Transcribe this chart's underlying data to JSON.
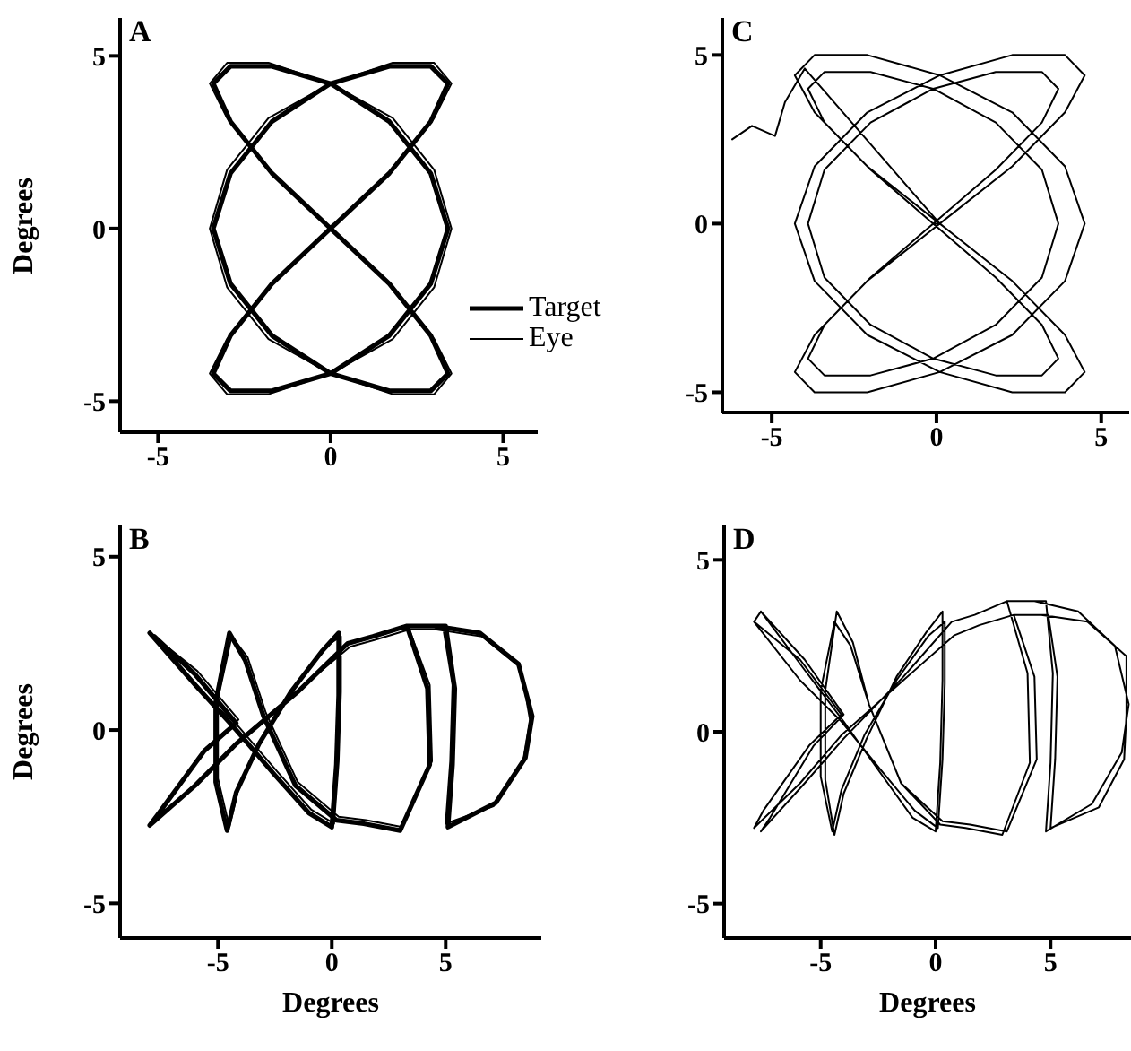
{
  "chart_data": [
    {
      "type": "line",
      "title": "A",
      "ylabel": "Degrees",
      "xlim": [
        -6.1,
        6.0
      ],
      "ylim": [
        -5.9,
        6.1
      ],
      "xticks": [
        -5,
        0,
        5
      ],
      "yticks": [
        -5,
        0,
        5
      ],
      "legend": "right",
      "line_style": "solid",
      "series": [
        {
          "name": "Target",
          "color": "#000000",
          "x": [
            0,
            1.7,
            2.9,
            3.4,
            2.9,
            1.7,
            0,
            -1.7,
            -2.9,
            -3.4,
            -2.9,
            -1.7,
            0,
            1.7,
            2.9,
            3.4,
            2.9,
            1.7,
            0,
            -1.7,
            -2.9,
            -3.4,
            -2.9,
            -1.7,
            0,
            1.7,
            2.9,
            3.4,
            2.9,
            1.7,
            0,
            -1.7,
            -2.9,
            -3.4,
            -2.9,
            -1.7,
            0.1
          ],
          "values": [
            0,
            1.6,
            3.1,
            4.2,
            4.7,
            4.7,
            4.2,
            3.1,
            1.6,
            0,
            -1.6,
            -3.1,
            -4.2,
            -4.7,
            -4.7,
            -4.2,
            -3.1,
            -1.6,
            0,
            1.6,
            3.1,
            4.2,
            4.7,
            4.7,
            4.2,
            3.1,
            1.6,
            0,
            -1.6,
            -3.1,
            -4.2,
            -4.7,
            -4.7,
            -4.2,
            -3.1,
            -1.6,
            0.1
          ]
        },
        {
          "name": "Eye",
          "color": "#000000",
          "x": [
            0.1,
            1.8,
            3.0,
            3.5,
            3.0,
            1.8,
            0,
            -1.8,
            -3.0,
            -3.5,
            -3.0,
            -1.8,
            0,
            1.8,
            3.0,
            3.5,
            3.0,
            1.8,
            0,
            -1.8,
            -3.0,
            -3.5,
            -3.0,
            -1.8,
            0,
            1.8,
            3.0,
            3.5,
            3.0,
            1.8,
            0,
            -1.8,
            -3.0,
            -3.5,
            -3.0,
            -1.8,
            0
          ],
          "values": [
            0.1,
            1.7,
            3.2,
            4.2,
            4.8,
            4.8,
            4.2,
            3.2,
            1.7,
            0,
            -1.7,
            -3.2,
            -4.2,
            -4.8,
            -4.8,
            -4.2,
            -3.2,
            -1.7,
            0,
            1.7,
            3.2,
            4.2,
            4.8,
            4.8,
            4.2,
            3.2,
            1.7,
            0,
            -1.7,
            -3.2,
            -4.2,
            -4.8,
            -4.8,
            -4.2,
            -3.2,
            -1.7,
            0
          ]
        }
      ]
    },
    {
      "type": "line",
      "title": "C",
      "xlim": [
        -6.5,
        5.85
      ],
      "ylim": [
        -5.6,
        6.1
      ],
      "xticks": [
        -5,
        0,
        5
      ],
      "yticks": [
        -5,
        0,
        5
      ],
      "line_style": "solid",
      "series": [
        {
          "color": "#000000",
          "x": [
            -6.2,
            -5.6,
            -4.9,
            -4.6,
            -4.0,
            0.1,
            2.3,
            3.9,
            4.5,
            3.9,
            2.3,
            0.1,
            -2.1,
            -3.7,
            -4.3,
            -3.7,
            -2.1,
            0.1,
            2.3,
            3.9,
            4.5,
            3.9,
            2.3,
            0.1,
            -2.1,
            -3.7,
            -4.3,
            -3.7,
            -2.1,
            0.1,
            2.3,
            3.9,
            4.5,
            3.9,
            2.3,
            0.1,
            -2.1,
            -3.7,
            -4.3,
            -3.7,
            -2.1,
            0.1,
            -0.1,
            1.8,
            3.2,
            3.7,
            3.2,
            1.8,
            -0.1,
            -2.0,
            -3.4,
            -3.9,
            -3.4,
            -2.0,
            -0.1,
            1.8,
            3.2,
            3.7,
            3.2,
            1.8,
            -0.1,
            -2.0,
            -3.4,
            -3.9,
            -3.4,
            -2.0,
            -0.1,
            1.8,
            3.2,
            3.7,
            3.2,
            1.8,
            -0.1,
            -2.0,
            -3.4,
            -3.9,
            -3.4,
            -2.0,
            -0.1
          ],
          "values": [
            2.5,
            2.9,
            2.6,
            3.6,
            4.6,
            0,
            1.7,
            3.3,
            4.4,
            5.0,
            5.0,
            4.4,
            3.3,
            1.7,
            0,
            -1.7,
            -3.3,
            -4.4,
            -5.0,
            -5.0,
            -4.4,
            -3.3,
            -1.7,
            0,
            1.7,
            3.3,
            4.4,
            5.0,
            5.0,
            4.4,
            3.3,
            1.7,
            0,
            -1.7,
            -3.3,
            -4.4,
            -5.0,
            -5.0,
            -4.4,
            -3.3,
            -1.7,
            0,
            0,
            1.6,
            3.0,
            4.0,
            4.5,
            4.5,
            4.0,
            3.0,
            1.6,
            0,
            -1.6,
            -3.0,
            -4.0,
            -4.5,
            -4.5,
            -4.0,
            -3.0,
            -1.6,
            0,
            1.6,
            3.0,
            4.0,
            4.5,
            4.5,
            4.0,
            3.0,
            1.6,
            0,
            -1.6,
            -3.0,
            -4.0,
            -4.5,
            -4.5,
            -4.0,
            -3.0,
            -1.6,
            0
          ]
        }
      ]
    },
    {
      "type": "line",
      "title": "B",
      "xlabel": "Degrees",
      "ylabel": "Degrees",
      "xlim": [
        -9.3,
        9.2
      ],
      "ylim": [
        -6.0,
        5.9
      ],
      "xticks": [
        -5,
        0,
        5
      ],
      "yticks": [
        -5,
        0,
        5
      ],
      "line_style": "solid",
      "series": [
        {
          "color": "#000000",
          "x": [
            -8.0,
            -6.0,
            -4.2,
            -2.5,
            -1.0,
            0.0,
            0.2,
            0.3,
            0.3,
            -0.4,
            -1.8,
            -3.2,
            -4.2,
            -4.6,
            -5.1,
            -5.1,
            -4.5,
            -3.8,
            -3.0,
            -1.6,
            0.2,
            1.4,
            3.0,
            4.3,
            4.2,
            3.3,
            4.5,
            6.5,
            8.2,
            8.8,
            8.5,
            7.2,
            5.1,
            5.3,
            5.4,
            5.0,
            3.3,
            1.8,
            0.7,
            -1.5,
            -4.2,
            -6.0,
            -8.0,
            -7.6,
            -5.6,
            -4.2,
            -6.0,
            -7.8
          ],
          "values": [
            2.8,
            1.3,
            0.0,
            -1.3,
            -2.4,
            -2.8,
            -1.0,
            1.0,
            2.8,
            2.3,
            1.1,
            -0.4,
            -1.8,
            -2.9,
            -1.5,
            0.8,
            2.8,
            2.0,
            0.4,
            -1.6,
            -2.6,
            -2.7,
            -2.9,
            -1.0,
            1.2,
            3.0,
            3.0,
            2.8,
            1.9,
            0.4,
            -0.8,
            -2.1,
            -2.8,
            -1.0,
            1.2,
            3.0,
            3.0,
            2.7,
            2.5,
            1.1,
            -0.4,
            -1.6,
            -2.75,
            -2.4,
            -0.6,
            0.2,
            1.6,
            2.7
          ]
        },
        {
          "color": "#000000",
          "x": [
            -7.9,
            -5.9,
            -4.1,
            -2.4,
            -0.9,
            0.1,
            0.3,
            0.4,
            0.4,
            -0.3,
            -1.7,
            -3.1,
            -4.1,
            -4.5,
            -5.0,
            -5.0,
            -4.4,
            -3.7,
            -2.9,
            -1.5,
            0.3,
            1.5,
            3.1,
            4.4,
            4.3,
            3.4,
            4.6,
            6.6,
            8.3,
            8.7,
            8.4,
            7.1,
            5.0,
            5.2,
            5.3,
            4.9,
            3.4,
            1.9,
            0.8,
            -1.4,
            -4.1,
            -5.9,
            -7.9,
            -7.5,
            -5.5,
            -4.1,
            -5.9,
            -8.0
          ],
          "values": [
            2.7,
            1.2,
            0.1,
            -1.2,
            -2.3,
            -2.7,
            -0.9,
            1.1,
            2.7,
            2.4,
            1.2,
            -0.3,
            -1.7,
            -2.8,
            -1.4,
            0.9,
            2.7,
            2.1,
            0.5,
            -1.5,
            -2.5,
            -2.6,
            -2.8,
            -0.9,
            1.3,
            2.9,
            2.9,
            2.7,
            1.8,
            0.3,
            -0.9,
            -2.2,
            -2.7,
            -0.9,
            1.3,
            2.9,
            2.9,
            2.6,
            2.4,
            1.2,
            -0.3,
            -1.5,
            -2.7,
            -2.3,
            -0.5,
            0.3,
            1.7,
            2.8
          ]
        }
      ]
    },
    {
      "type": "line",
      "title": "D",
      "xlabel": "Degrees",
      "xlim": [
        -9.2,
        8.5
      ],
      "ylim": [
        -6.0,
        6.0
      ],
      "xticks": [
        -5,
        0,
        5
      ],
      "yticks": [
        -5,
        0,
        5
      ],
      "line_style": "solid",
      "series": [
        {
          "color": "#000000",
          "x": [
            -7.6,
            -5.7,
            -4.0,
            -2.4,
            -1.0,
            0.0,
            0.2,
            0.3,
            0.3,
            -0.4,
            -1.7,
            -3.0,
            -4.0,
            -4.4,
            -4.8,
            -4.8,
            -4.3,
            -3.6,
            -2.9,
            -1.5,
            0.2,
            1.3,
            2.9,
            4.1,
            4.0,
            3.1,
            4.3,
            6.2,
            7.8,
            8.4,
            8.1,
            6.8,
            4.8,
            5.0,
            5.1,
            4.8,
            3.1,
            1.7,
            0.7,
            -1.4,
            -4.0,
            -5.7,
            -7.6,
            -7.2,
            -5.3,
            -4.0,
            -5.7,
            -7.6,
            -7.9,
            -5.9,
            -4.1,
            -2.4,
            -0.9,
            0.1,
            0.3,
            0.4,
            0.4,
            -0.3,
            -1.7,
            -3.1,
            -4.1,
            -4.5,
            -5.0,
            -5.0,
            -4.4,
            -3.7,
            -2.9,
            -1.5,
            0.3,
            1.5,
            3.1,
            4.4,
            4.3,
            3.4,
            4.6,
            6.6,
            8.3,
            8.3,
            8.2,
            7.1,
            5.0,
            5.2,
            5.3,
            4.9,
            3.4,
            1.9,
            0.8,
            -1.4,
            -4.1,
            -5.9,
            -7.9,
            -7.5,
            -5.5,
            -4.1,
            -5.9,
            -7.9
          ],
          "values": [
            3.5,
            1.8,
            0.3,
            -1.2,
            -2.5,
            -2.9,
            -0.9,
            1.5,
            3.5,
            2.9,
            1.6,
            -0.2,
            -1.8,
            -3.0,
            -1.4,
            1.2,
            3.5,
            2.6,
            0.8,
            -1.5,
            -2.7,
            -2.8,
            -3.0,
            -0.9,
            1.7,
            3.8,
            3.8,
            3.5,
            2.5,
            0.8,
            -0.6,
            -2.1,
            -2.9,
            -0.9,
            1.7,
            3.8,
            3.8,
            3.4,
            3.2,
            1.6,
            -0.2,
            -1.5,
            -2.9,
            -2.5,
            -0.4,
            0.5,
            2.1,
            3.5,
            3.2,
            1.5,
            0.3,
            -1.1,
            -2.3,
            -2.8,
            -0.8,
            1.4,
            3.2,
            2.8,
            1.5,
            -0.1,
            -1.7,
            -2.9,
            -1.3,
            1.2,
            3.2,
            2.5,
            0.8,
            -1.5,
            -2.6,
            -2.7,
            -2.9,
            -0.8,
            1.6,
            3.4,
            3.4,
            3.2,
            2.2,
            0.5,
            -0.8,
            -2.2,
            -2.8,
            -0.8,
            1.6,
            3.4,
            3.4,
            3.1,
            2.8,
            1.5,
            -0.1,
            -1.5,
            -2.8,
            -2.3,
            -0.4,
            0.5,
            2.1,
            3.2
          ]
        }
      ]
    }
  ]
}
